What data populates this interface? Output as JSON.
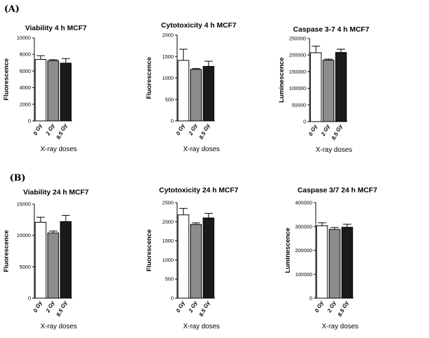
{
  "panels": {
    "a": "(A)",
    "b": "(B)"
  },
  "colors": {
    "0 Gy": "#ffffff",
    "2 Gy": "#8c8c8c",
    "8.5 Gy": "#1a1a1a"
  },
  "chart_data": [
    {
      "type": "bar",
      "title": "Viability 4 h  MCF7",
      "ylabel": "Fluorescence",
      "xlabel": "X-ray doses",
      "categories": [
        "0 Gy",
        "2 Gy",
        "8.5 Gy"
      ],
      "values": [
        7400,
        7250,
        6950
      ],
      "errors": [
        450,
        120,
        550
      ],
      "ylim": [
        0,
        10000
      ],
      "yticks": [
        0,
        2000,
        4000,
        6000,
        8000,
        10000
      ],
      "ytick_labels": [
        "0",
        "2000",
        "4000",
        "6000",
        "8000",
        "10000"
      ]
    },
    {
      "type": "bar",
      "title": "Cytotoxicity 4 h  MCF7",
      "ylabel": "Fluorescence",
      "xlabel": "X-ray doses",
      "categories": [
        "0 Gy",
        "2 Gy",
        "8.5 Gy"
      ],
      "values": [
        1410,
        1200,
        1270
      ],
      "errors": [
        260,
        20,
        120
      ],
      "ylim": [
        0,
        2000
      ],
      "yticks": [
        0,
        500,
        1000,
        1500,
        2000
      ],
      "ytick_labels": [
        "0",
        "500",
        "1000",
        "1500",
        "2000"
      ]
    },
    {
      "type": "bar",
      "title": "Caspase 3-7  4 h  MCF7",
      "ylabel": "Luminescence",
      "xlabel": "X-ray doses",
      "categories": [
        "0 Gy",
        "2 Gy",
        "8.5 Gy"
      ],
      "values": [
        207000,
        185000,
        208000
      ],
      "errors": [
        20000,
        3000,
        10000
      ],
      "ylim": [
        0,
        250000
      ],
      "yticks": [
        0,
        50000,
        100000,
        150000,
        200000,
        250000
      ],
      "ytick_labels": [
        "0",
        "50000",
        "100000",
        "150000",
        "200000",
        "250000"
      ]
    },
    {
      "type": "bar",
      "title": "Viability  24 h  MCF7",
      "ylabel": "Fluorescence",
      "xlabel": "X-ray doses",
      "categories": [
        "0 Gy",
        "2 Gy",
        "8.5 Gy"
      ],
      "values": [
        12100,
        10400,
        12200
      ],
      "errors": [
        800,
        300,
        1000
      ],
      "ylim": [
        0,
        15000
      ],
      "yticks": [
        0,
        5000,
        10000,
        15000
      ],
      "ytick_labels": [
        "0",
        "5000",
        "10000",
        "15000"
      ]
    },
    {
      "type": "bar",
      "title": "Cytotoxicity 24 h  MCF7",
      "ylabel": "Fluorescence",
      "xlabel": "X-ray doses",
      "categories": [
        "0 Gy",
        "2 Gy",
        "8.5 Gy"
      ],
      "values": [
        2180,
        1930,
        2100
      ],
      "errors": [
        170,
        40,
        120
      ],
      "ylim": [
        0,
        2500
      ],
      "yticks": [
        0,
        500,
        1000,
        1500,
        2000,
        2500
      ],
      "ytick_labels": [
        "0",
        "500",
        "1000",
        "1500",
        "2000",
        "2500"
      ]
    },
    {
      "type": "bar",
      "title": "Caspase 3/7  24 h  MCF7",
      "ylabel": "Luminescence",
      "xlabel": "X-ray doses",
      "categories": [
        "0 Gy",
        "2 Gy",
        "8.5 Gy"
      ],
      "values": [
        303000,
        288000,
        297000
      ],
      "errors": [
        13000,
        8000,
        13000
      ],
      "ylim": [
        0,
        400000
      ],
      "yticks": [
        0,
        100000,
        200000,
        300000,
        400000
      ],
      "ytick_labels": [
        "0",
        "100000",
        "200000",
        "300000",
        "400000"
      ]
    }
  ]
}
